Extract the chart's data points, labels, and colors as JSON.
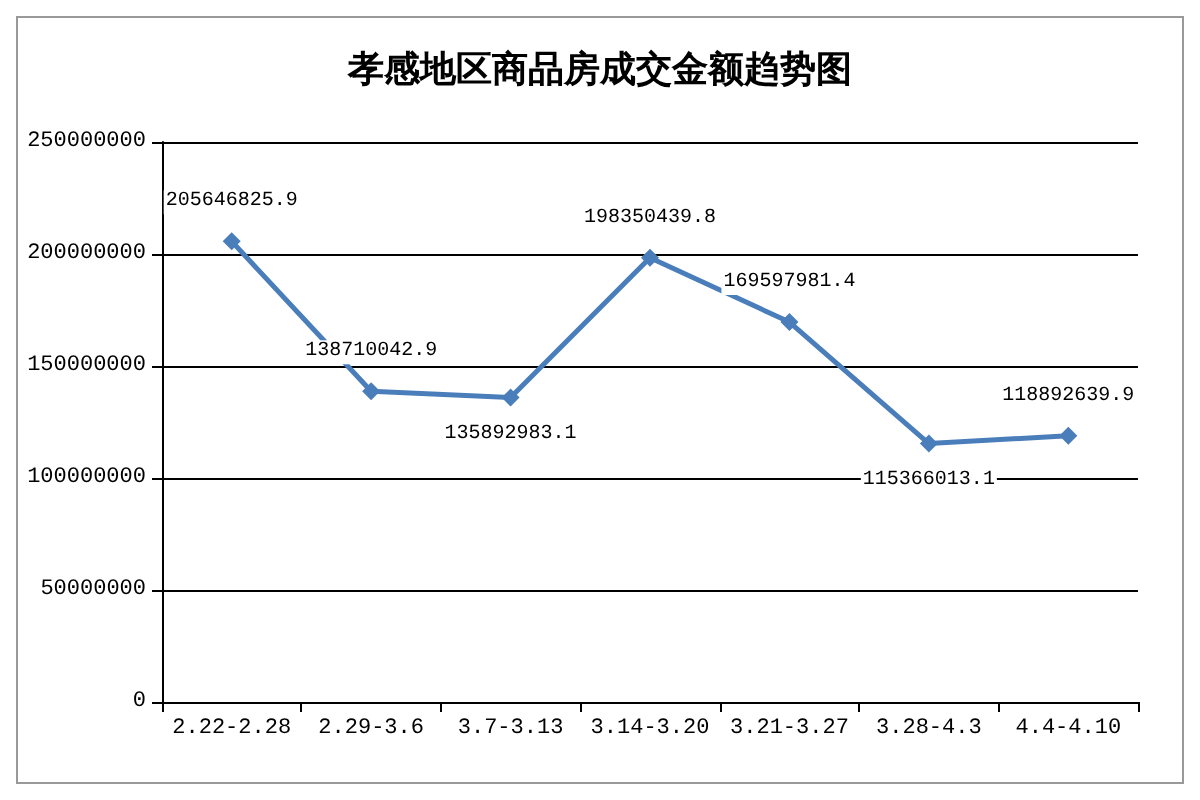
{
  "chart_data": {
    "type": "line",
    "title": "孝感地区商品房成交金额趋势图",
    "categories": [
      "2.22-2.28",
      "2.29-3.6",
      "3.7-3.13",
      "3.14-3.20",
      "3.21-3.27",
      "3.28-4.3",
      "4.4-4.10"
    ],
    "series": [
      {
        "color": "#4a7ebb",
        "values": [
          205646825.9,
          138710042.9,
          135892983.1,
          198350439.8,
          169597981.4,
          115366013.1,
          118892639.9
        ]
      }
    ],
    "ylim": [
      0,
      250000000
    ],
    "yticks": [
      0,
      50000000,
      100000000,
      150000000,
      200000000,
      250000000
    ],
    "grid": "y",
    "marker": "diamond",
    "line_style": "solid",
    "data_labels": true
  }
}
